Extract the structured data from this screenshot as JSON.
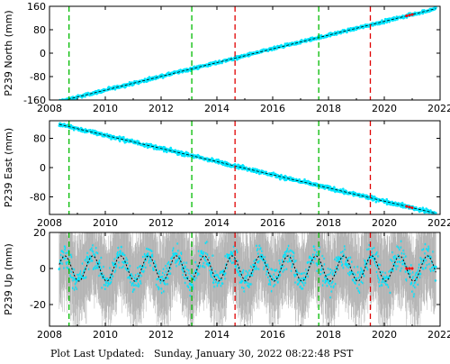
{
  "footer": {
    "label": "Plot Last Updated:",
    "value": "Sunday, January 30, 2022 08:22:48 PST"
  },
  "colors": {
    "data": "#00e5ff",
    "error_bars": "#b0b0b0",
    "model": "#000000",
    "earthquake_offsets": "#ff0000",
    "equipment_changes": "#00c000",
    "event_line_red": "#e00000",
    "event_line_green": "#00bb00"
  },
  "chart_data": [
    {
      "type": "scatter",
      "station": "P239",
      "ylabel": "P239 North (mm)",
      "xlim": [
        2008,
        2022
      ],
      "ylim": [
        -160,
        160
      ],
      "xticks": [
        "2008",
        "2010",
        "2012",
        "2014",
        "2016",
        "2018",
        "2020",
        "2022"
      ],
      "yticks": [
        "-160",
        "-80",
        "0",
        "80",
        "160"
      ],
      "trend": {
        "x": [
          2008.35,
          2021.85
        ],
        "y": [
          -165,
          152
        ]
      },
      "noise": 4,
      "seasonal": 0
    },
    {
      "type": "scatter",
      "station": "P239",
      "ylabel": "P239 East (mm)",
      "xlim": [
        2008,
        2022
      ],
      "ylim": [
        -128,
        128
      ],
      "xticks": [
        "2008",
        "2010",
        "2012",
        "2014",
        "2016",
        "2018",
        "2020",
        "2022"
      ],
      "yticks": [
        "-80",
        "0",
        "80"
      ],
      "trend": {
        "x": [
          2008.35,
          2021.85
        ],
        "y": [
          118,
          -125
        ]
      },
      "noise": 4,
      "seasonal": 0
    },
    {
      "type": "scatter",
      "station": "P239",
      "ylabel": "P239 Up (mm)",
      "xlim": [
        2008,
        2022
      ],
      "ylim": [
        -32,
        20
      ],
      "xticks": [
        "2008",
        "2010",
        "2012",
        "2014",
        "2016",
        "2018",
        "2020",
        "2022"
      ],
      "yticks": [
        "-20",
        "0",
        "20"
      ],
      "trend": {
        "x": [
          2008.35,
          2021.85
        ],
        "y": [
          0,
          0
        ]
      },
      "noise": 5,
      "seasonal": 7
    }
  ],
  "event_lines": {
    "equipment_changes": [
      2008.7,
      2013.1,
      2017.65
    ],
    "earthquakes": [
      2014.65,
      2019.5
    ]
  }
}
